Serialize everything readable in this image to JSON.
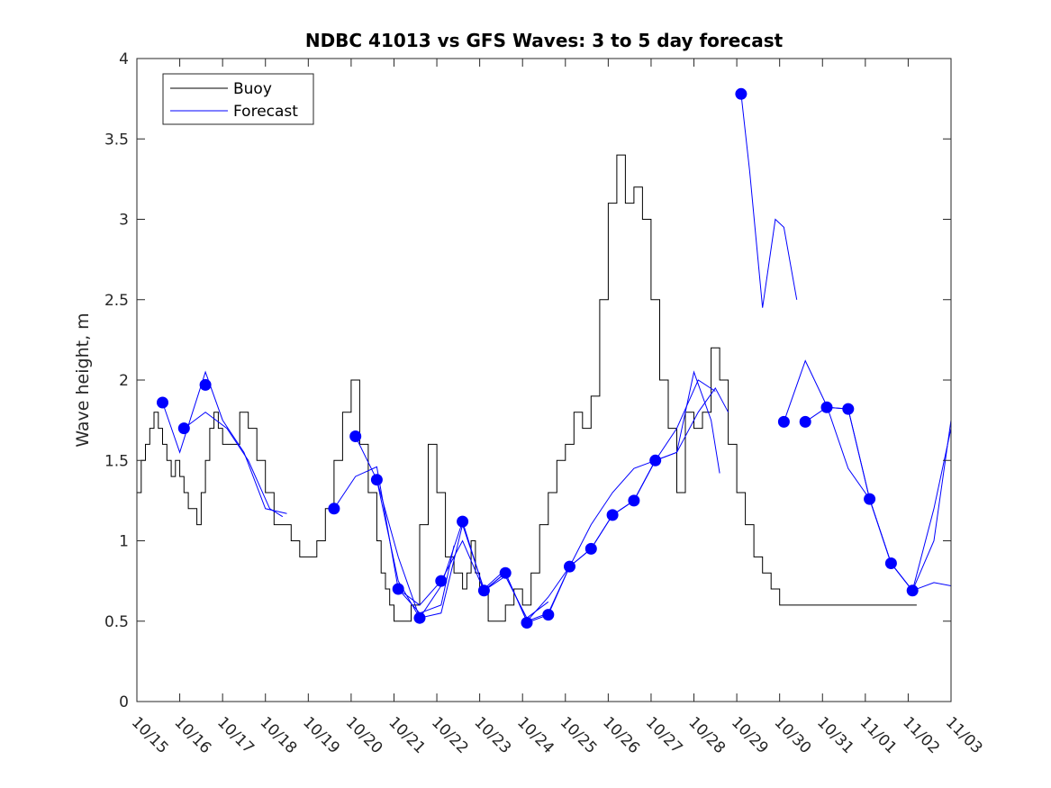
{
  "chart_data": {
    "type": "line",
    "title": "NDBC 41013 vs GFS Waves: 3 to 5 day forecast",
    "xlabel": "",
    "ylabel": "Wave height, m",
    "ylim": [
      0,
      4
    ],
    "yticks": [
      0,
      0.5,
      1,
      1.5,
      2,
      2.5,
      3,
      3.5,
      4
    ],
    "ytick_labels": [
      "0",
      "0.5",
      "1",
      "1.5",
      "2",
      "2.5",
      "3",
      "3.5",
      "4"
    ],
    "xlim": [
      0,
      19
    ],
    "xtick_labels": [
      "10/15",
      "10/16",
      "10/17",
      "10/18",
      "10/19",
      "10/20",
      "10/21",
      "10/22",
      "10/23",
      "10/24",
      "10/25",
      "10/26",
      "10/27",
      "10/28",
      "10/29",
      "10/30",
      "10/31",
      "11/01",
      "11/02",
      "11/03"
    ],
    "legend": {
      "position": "top-left",
      "entries": [
        "Buoy",
        "Forecast"
      ]
    },
    "colors": {
      "buoy": "#000000",
      "forecast": "#0000ff",
      "axis": "#262626"
    },
    "buoy": {
      "name": "Buoy",
      "x": [
        0,
        0.1,
        0.2,
        0.3,
        0.4,
        0.5,
        0.6,
        0.7,
        0.8,
        0.9,
        1.0,
        1.1,
        1.2,
        1.3,
        1.4,
        1.5,
        1.6,
        1.7,
        1.8,
        1.9,
        2.0,
        2.2,
        2.4,
        2.6,
        2.8,
        3.0,
        3.2,
        3.4,
        3.6,
        3.8,
        4.0,
        4.2,
        4.4,
        4.6,
        4.8,
        5.0,
        5.2,
        5.4,
        5.6,
        5.7,
        5.8,
        5.9,
        6.0,
        6.2,
        6.4,
        6.6,
        6.8,
        7.0,
        7.2,
        7.4,
        7.6,
        7.7,
        7.8,
        7.9,
        8.0,
        8.2,
        8.4,
        8.6,
        8.8,
        9.0,
        9.2,
        9.4,
        9.6,
        9.8,
        10.0,
        10.2,
        10.4,
        10.6,
        10.8,
        11.0,
        11.2,
        11.4,
        11.6,
        11.8,
        12.0,
        12.2,
        12.4,
        12.6,
        12.8,
        13.0,
        13.2,
        13.4,
        13.6,
        13.8,
        14.0,
        14.2,
        14.4,
        14.6,
        14.8,
        15.0,
        15.2,
        15.4,
        15.6,
        15.8,
        16.0,
        16.2,
        16.4,
        16.6,
        16.8,
        17.0,
        17.2,
        17.4,
        17.6,
        17.8,
        18.0,
        18.2
      ],
      "y": [
        1.3,
        1.5,
        1.6,
        1.7,
        1.8,
        1.7,
        1.6,
        1.5,
        1.4,
        1.5,
        1.4,
        1.3,
        1.2,
        1.2,
        1.1,
        1.3,
        1.5,
        1.7,
        1.8,
        1.7,
        1.6,
        1.6,
        1.8,
        1.7,
        1.5,
        1.3,
        1.1,
        1.1,
        1.0,
        0.9,
        0.9,
        1.0,
        1.2,
        1.5,
        1.8,
        2.0,
        1.6,
        1.3,
        1.0,
        0.8,
        0.7,
        0.6,
        0.5,
        0.5,
        0.6,
        1.1,
        1.6,
        1.3,
        0.9,
        0.8,
        0.7,
        0.8,
        1.0,
        0.8,
        0.7,
        0.5,
        0.5,
        0.6,
        0.7,
        0.6,
        0.8,
        1.1,
        1.3,
        1.5,
        1.6,
        1.8,
        1.7,
        1.9,
        2.5,
        3.1,
        3.4,
        3.1,
        3.2,
        3.0,
        2.5,
        2.0,
        1.7,
        1.3,
        1.8,
        1.7,
        1.8,
        2.2,
        2.0,
        1.6,
        1.3,
        1.1,
        0.9,
        0.8,
        0.7,
        0.6,
        0.6,
        0.6,
        0.6,
        0.6,
        0.6,
        0.6,
        0.6,
        0.6,
        0.6,
        0.6,
        0.6,
        0.6,
        0.6,
        0.6,
        0.6,
        0.6
      ]
    },
    "forecast_runs": [
      {
        "x": [
          0.6,
          1.0,
          1.6,
          2.0,
          2.5,
          3.0,
          3.5
        ],
        "y": [
          1.86,
          1.55,
          2.05,
          1.75,
          1.55,
          1.2,
          1.17
        ]
      },
      {
        "x": [
          1.1,
          1.6,
          2.1,
          2.6,
          3.1,
          3.4
        ],
        "y": [
          1.7,
          1.8,
          1.7,
          1.5,
          1.2,
          1.15
        ]
      },
      {
        "x": [
          4.6,
          5.1,
          5.6,
          6.1,
          6.6,
          7.1,
          7.4
        ],
        "y": [
          1.2,
          1.4,
          1.46,
          0.7,
          0.55,
          0.6,
          0.97
        ]
      },
      {
        "x": [
          5.1,
          5.6,
          6.1,
          6.6,
          7.1,
          7.6,
          8.1,
          8.6
        ],
        "y": [
          1.65,
          1.38,
          0.9,
          0.52,
          0.55,
          1.1,
          0.7,
          0.82
        ]
      },
      {
        "x": [
          5.6,
          6.1,
          6.6,
          7.1,
          7.6,
          8.1,
          8.6,
          9.1,
          9.6
        ],
        "y": [
          1.38,
          0.75,
          0.52,
          0.72,
          1.12,
          0.69,
          0.78,
          0.52,
          0.62
        ]
      },
      {
        "x": [
          6.1,
          6.6,
          7.1,
          7.6,
          8.1,
          8.6,
          9.1,
          9.6,
          10.1
        ],
        "y": [
          0.7,
          0.6,
          0.75,
          1.0,
          0.69,
          0.8,
          0.5,
          0.55,
          0.84
        ]
      },
      {
        "x": [
          8.1,
          8.6,
          9.1,
          9.6,
          10.1,
          10.6,
          11.1,
          11.6,
          12.1
        ],
        "y": [
          0.69,
          0.8,
          0.5,
          0.65,
          0.84,
          0.95,
          1.16,
          1.25,
          1.5
        ]
      },
      {
        "x": [
          9.1,
          9.6,
          10.1,
          10.6,
          11.1,
          11.6,
          12.1,
          12.6,
          13.0,
          13.4,
          13.6
        ],
        "y": [
          0.49,
          0.54,
          0.84,
          1.1,
          1.3,
          1.45,
          1.5,
          1.55,
          2.05,
          1.75,
          1.42
        ]
      },
      {
        "x": [
          10.1,
          10.6,
          11.1,
          11.6,
          12.1,
          12.6,
          13.1,
          13.5,
          13.8
        ],
        "y": [
          0.84,
          0.95,
          1.16,
          1.25,
          1.5,
          1.55,
          1.8,
          1.95,
          1.8
        ]
      },
      {
        "x": [
          11.6,
          12.1,
          12.6,
          13.1,
          13.5
        ],
        "y": [
          1.25,
          1.5,
          1.7,
          2.0,
          1.93
        ]
      },
      {
        "x": [
          14.1,
          14.3,
          14.6,
          14.9,
          15.1,
          15.4
        ],
        "y": [
          3.78,
          3.3,
          2.45,
          3.0,
          2.95,
          2.5
        ]
      },
      {
        "x": [
          15.1,
          15.6,
          16.1,
          16.6,
          17.1,
          17.6,
          18.1,
          18.6,
          19.0
        ],
        "y": [
          1.74,
          2.12,
          1.84,
          1.45,
          1.26,
          0.86,
          0.69,
          0.74,
          0.72
        ]
      },
      {
        "x": [
          15.6,
          16.1,
          16.6,
          17.1,
          17.6,
          18.1,
          18.6,
          19.0
        ],
        "y": [
          1.74,
          1.83,
          1.82,
          1.26,
          0.86,
          0.69,
          1.0,
          1.75
        ]
      },
      {
        "x": [
          16.1,
          16.6,
          17.1,
          17.6,
          18.1,
          18.6,
          19.0
        ],
        "y": [
          1.83,
          1.82,
          1.26,
          0.86,
          0.69,
          1.2,
          1.7
        ]
      }
    ],
    "forecast_points": {
      "x": [
        0.6,
        1.1,
        1.6,
        4.6,
        5.1,
        5.6,
        6.1,
        6.6,
        7.1,
        7.6,
        8.1,
        8.6,
        9.1,
        9.6,
        10.1,
        10.6,
        11.1,
        11.6,
        12.1,
        14.1,
        15.1,
        15.6,
        16.1,
        16.6,
        17.1,
        17.6,
        18.1
      ],
      "y": [
        1.86,
        1.7,
        1.97,
        1.2,
        1.65,
        1.38,
        0.7,
        0.52,
        0.75,
        1.12,
        0.69,
        0.8,
        0.49,
        0.54,
        0.84,
        0.95,
        1.16,
        1.25,
        1.5,
        3.78,
        1.74,
        1.74,
        1.83,
        1.82,
        1.26,
        0.86,
        0.69
      ]
    }
  }
}
